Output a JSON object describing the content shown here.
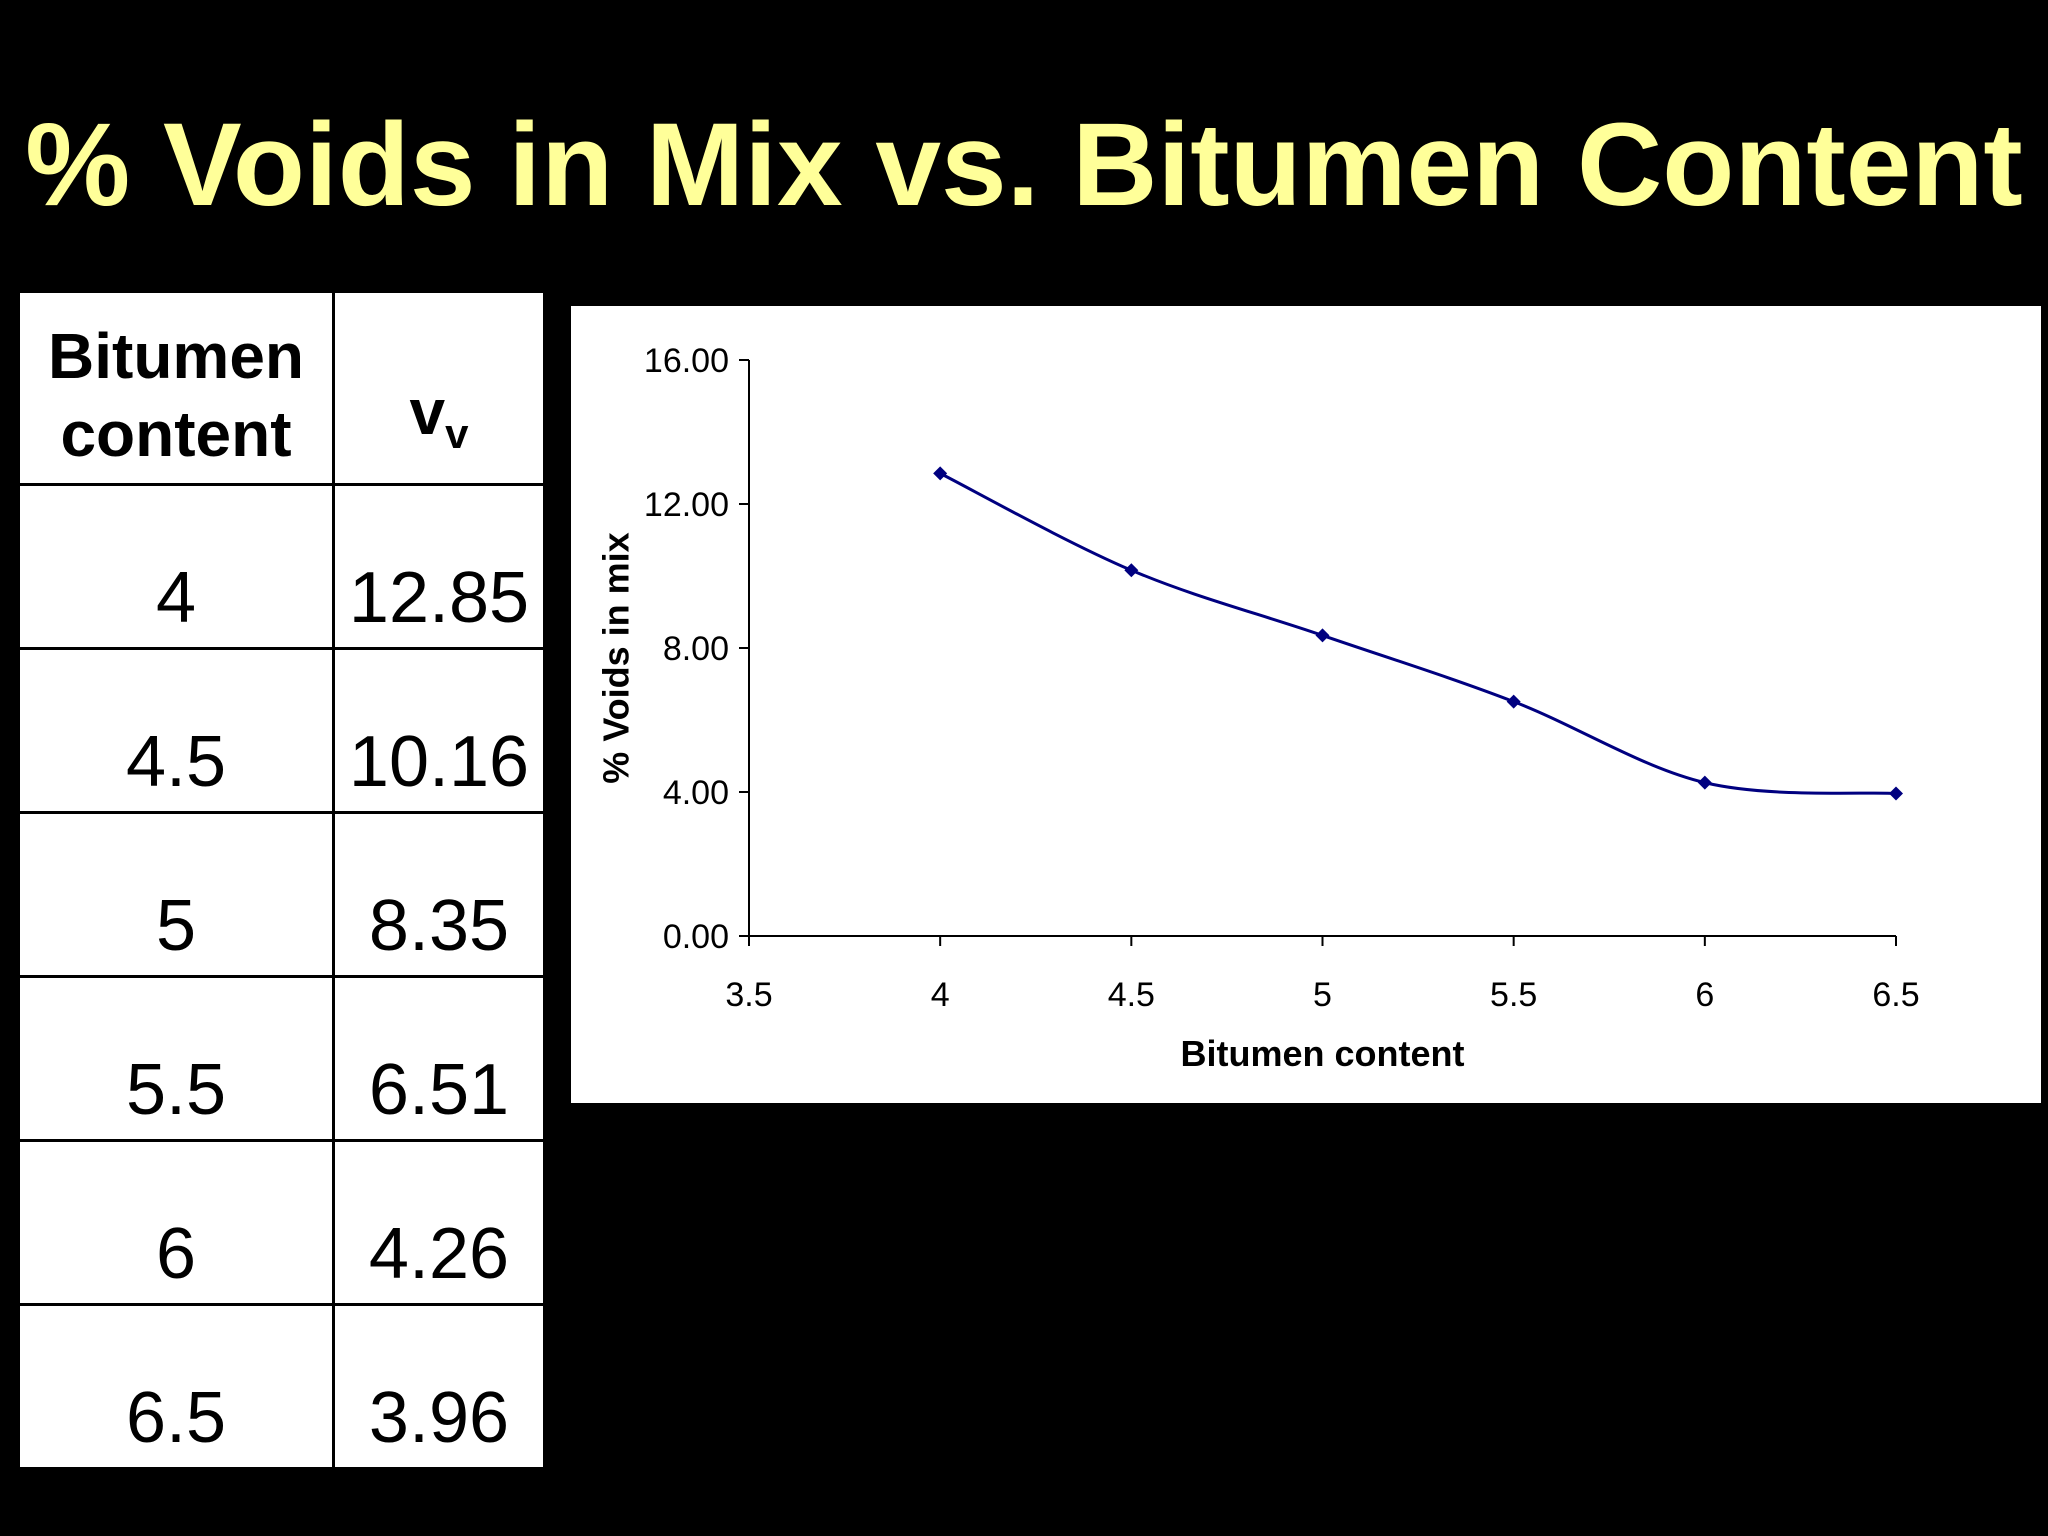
{
  "slide": {
    "title": "% Voids in Mix vs. Bitumen Content"
  },
  "table": {
    "header_col1": "Bitumen content",
    "header_col2_main": "v",
    "header_col2_sub": "v",
    "rows": [
      {
        "bitumen": "4",
        "vv": "12.85"
      },
      {
        "bitumen": "4.5",
        "vv": "10.16"
      },
      {
        "bitumen": "5",
        "vv": "8.35"
      },
      {
        "bitumen": "5.5",
        "vv": "6.51"
      },
      {
        "bitumen": "6",
        "vv": "4.26"
      },
      {
        "bitumen": "6.5",
        "vv": "3.96"
      }
    ]
  },
  "chart_data": {
    "type": "line",
    "title": "",
    "xlabel": "Bitumen content",
    "ylabel": "% Voids in mix",
    "x": [
      4,
      4.5,
      5,
      5.5,
      6,
      6.5
    ],
    "series": [
      {
        "values": [
          12.85,
          10.16,
          8.35,
          6.51,
          4.26,
          3.96
        ]
      }
    ],
    "xlim": [
      3.5,
      6.5
    ],
    "ylim": [
      0,
      16
    ],
    "x_ticks": [
      "3.5",
      "4",
      "4.5",
      "5",
      "5.5",
      "6",
      "6.5"
    ],
    "y_ticks": [
      "0.00",
      "4.00",
      "8.00",
      "12.00",
      "16.00"
    ],
    "smoothed": true,
    "marker": "diamond",
    "line_color": "#000080",
    "grid": false,
    "legend": "none"
  }
}
